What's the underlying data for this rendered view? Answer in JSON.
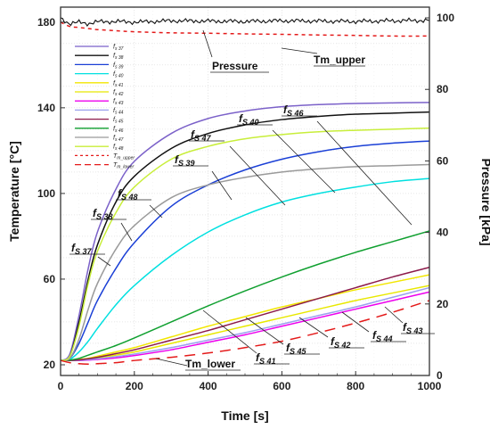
{
  "chart_data": {
    "type": "line",
    "title": "",
    "xlabel": "Time [s]",
    "ylabel": "Temperature [°C]",
    "y2label": "Pressure [kPa]",
    "xlim": [
      0,
      1000
    ],
    "ylim": [
      15,
      187
    ],
    "y2lim": [
      0,
      103
    ],
    "xticks": [
      "0",
      "200",
      "400",
      "600",
      "800",
      "1000"
    ],
    "yticks": [
      "20",
      "60",
      "100",
      "140",
      "180"
    ],
    "y2ticks": [
      "0",
      "20",
      "40",
      "60",
      "80",
      "100"
    ],
    "legend_position": "upper-left",
    "x": [
      0,
      25,
      50,
      75,
      100,
      150,
      200,
      300,
      400,
      500,
      600,
      700,
      800,
      900,
      1000
    ],
    "series": [
      {
        "name": "f",
        "sub": "s 37",
        "color": "#7b61c9",
        "dash": "",
        "values": [
          22,
          25,
          43,
          65,
          82,
          102,
          115,
          128,
          135,
          138.5,
          140.5,
          141.5,
          142,
          142.3,
          142.5
        ]
      },
      {
        "name": "f",
        "sub": "s 38",
        "color": "#111111",
        "dash": "",
        "values": [
          22,
          24,
          40,
          60,
          76,
          96,
          108,
          121,
          128,
          132,
          134.5,
          136,
          137,
          137.5,
          138
        ]
      },
      {
        "name": "f",
        "sub": "s 39",
        "color": "#1a3fd6",
        "dash": "",
        "values": [
          22,
          23,
          30,
          40,
          50,
          65,
          77,
          94,
          104,
          111,
          116,
          119.5,
          122,
          123.5,
          124.5
        ]
      },
      {
        "name": "f",
        "sub": "s 40",
        "color": "#00e0e0",
        "dash": "",
        "values": [
          22,
          22.5,
          26,
          31,
          37,
          48,
          57,
          71,
          82,
          90,
          96,
          100,
          103,
          105.5,
          107
        ]
      },
      {
        "name": "f",
        "sub": "s 41",
        "color": "#f2e600",
        "dash": "",
        "values": [
          22,
          22,
          22.5,
          23,
          24,
          26,
          28,
          33,
          38,
          42.5,
          47,
          51,
          55,
          58.5,
          62
        ]
      },
      {
        "name": "f",
        "sub": "s 42",
        "color": "#e8e800",
        "dash": "",
        "values": [
          22,
          22,
          22.2,
          22.6,
          23.2,
          24.5,
          26,
          30,
          34,
          38,
          42,
          46,
          50,
          53.5,
          57
        ]
      },
      {
        "name": "f",
        "sub": "s 43",
        "color": "#ee00ee",
        "dash": "",
        "values": [
          22,
          22,
          22,
          22.2,
          22.5,
          23.2,
          24.3,
          27,
          30.5,
          34,
          38,
          42,
          46,
          50,
          54
        ]
      },
      {
        "name": "f",
        "sub": "s 44",
        "color": "#9aa0ee",
        "dash": "",
        "values": [
          22,
          22,
          22.1,
          22.4,
          22.8,
          23.8,
          25,
          28,
          31.5,
          35,
          39,
          43,
          47,
          51.5,
          56
        ]
      },
      {
        "name": "f",
        "sub": "s 45",
        "color": "#8c1a4a",
        "dash": "",
        "values": [
          22,
          22,
          22.3,
          22.8,
          23.5,
          25.2,
          27,
          31.5,
          36,
          41,
          46,
          51,
          56,
          61,
          65.5
        ]
      },
      {
        "name": "f",
        "sub": "s 46",
        "color": "#10a030",
        "dash": "",
        "values": [
          22,
          22.2,
          23,
          24.5,
          26,
          29,
          32.5,
          40,
          47.5,
          54.5,
          61,
          67,
          72.5,
          77.5,
          82.5
        ]
      },
      {
        "name": "f",
        "sub": "s 47",
        "color": "#9a9a9a",
        "dash": "",
        "values": [
          22,
          23,
          32,
          46,
          58,
          74,
          85,
          98,
          104,
          107.5,
          110,
          111.5,
          112.5,
          113,
          113.5
        ]
      },
      {
        "name": "f",
        "sub": "s 48",
        "color": "#c8ee3a",
        "dash": "",
        "values": [
          22,
          24,
          38,
          58,
          73,
          91,
          103,
          116,
          122,
          125.5,
          127.5,
          128.8,
          129.5,
          130,
          130.5
        ]
      },
      {
        "name": "T",
        "sub": "m_upper",
        "color": "#e41a1a",
        "dash": "4,4",
        "values": [
          180,
          178,
          177.5,
          177,
          176.5,
          176,
          175.5,
          175,
          174.8,
          174.5,
          174.3,
          174,
          173.8,
          173.5,
          173.5
        ]
      },
      {
        "name": "T",
        "sub": "m_lower",
        "color": "#e41a1a",
        "dash": "12,8",
        "values": [
          22,
          21,
          20.5,
          20.3,
          20.5,
          21,
          22,
          23.5,
          25.5,
          28,
          31,
          35,
          39.5,
          44.5,
          50
        ]
      },
      {
        "name": "Pressure",
        "sub": "",
        "color": "#111111",
        "dash": "",
        "axis": "right",
        "values": [
          100,
          98.3,
          98.8,
          98.4,
          98.9,
          99,
          98.8,
          99.2,
          99.1,
          99,
          99.2,
          99.1,
          99,
          99.2,
          99.3
        ]
      }
    ],
    "annotations": [
      {
        "text": "Pressure",
        "kind": "plain"
      },
      {
        "text": "Tm_upper",
        "kind": "plain"
      },
      {
        "text": "Tm_lower",
        "kind": "plain"
      },
      {
        "text": "f",
        "sub": "S 37",
        "kind": "fs"
      },
      {
        "text": "f",
        "sub": "S 38",
        "kind": "fs"
      },
      {
        "text": "f",
        "sub": "S 48",
        "kind": "fs"
      },
      {
        "text": "f",
        "sub": "S 39",
        "kind": "fs"
      },
      {
        "text": "f",
        "sub": "S 47",
        "kind": "fs"
      },
      {
        "text": "f",
        "sub": "S 40",
        "kind": "fs"
      },
      {
        "text": "f",
        "sub": "S 46",
        "kind": "fs"
      },
      {
        "text": "f",
        "sub": "S 41",
        "kind": "fs"
      },
      {
        "text": "f",
        "sub": "S 45",
        "kind": "fs"
      },
      {
        "text": "f",
        "sub": "S 42",
        "kind": "fs"
      },
      {
        "text": "f",
        "sub": "S 44",
        "kind": "fs"
      },
      {
        "text": "f",
        "sub": "S 43",
        "kind": "fs"
      }
    ]
  }
}
